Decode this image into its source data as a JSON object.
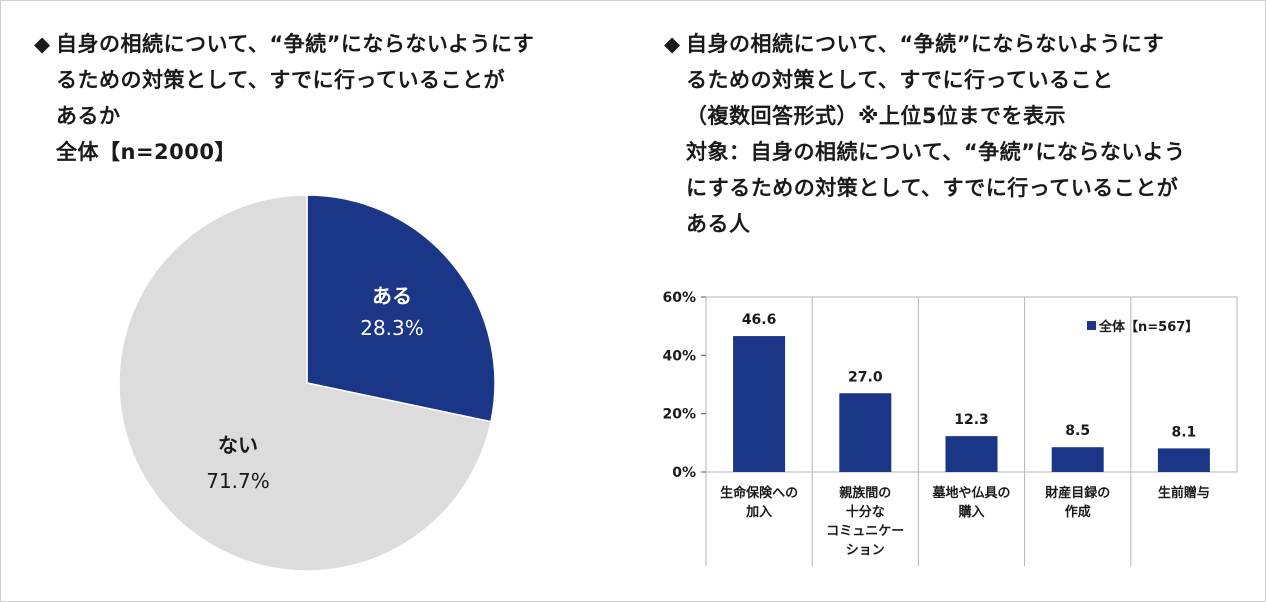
{
  "left": {
    "marker": "◆",
    "title_lines": [
      "自身の相続について、“争続”にならないようにす",
      "るための対策として、すでに行っていることが",
      "あるか"
    ],
    "base": "全体【n=2000】"
  },
  "right": {
    "marker": "◆",
    "title_lines": [
      "自身の相続について、“争続”にならないようにす",
      "るための対策として、すでに行っていること",
      "（複数回答形式）※上位5位までを表示"
    ],
    "target_lines": [
      "対象：自身の相続について、“争続”にならないよう",
      "にするための対策として、すでに行っていることが",
      "ある人"
    ]
  },
  "colors": {
    "navy": "#1b3587",
    "gray": "#dcdcdc",
    "grid": "#b5b5b5"
  },
  "chart_data": [
    {
      "type": "pie",
      "title": "",
      "slices": [
        {
          "label": "ある",
          "value": 28.3,
          "value_label": "28.3%",
          "color": "#1b3587"
        },
        {
          "label": "ない",
          "value": 71.7,
          "value_label": "71.7%",
          "color": "#dcdcdc"
        }
      ]
    },
    {
      "type": "bar",
      "title": "",
      "categories": [
        [
          "生命保険への",
          "加入"
        ],
        [
          "親族間の",
          "十分な",
          "コミュニケー",
          "ション"
        ],
        [
          "墓地や仏具の",
          "購入"
        ],
        [
          "財産目録の",
          "作成"
        ],
        [
          "生前贈与"
        ]
      ],
      "series": [
        {
          "name": "全体【n=567】",
          "values": [
            46.6,
            27.0,
            12.3,
            8.5,
            8.1
          ],
          "value_labels": [
            "46.6",
            "27.0",
            "12.3",
            "8.5",
            "8.1"
          ],
          "color": "#1b3587"
        }
      ],
      "ylim": [
        0,
        60
      ],
      "yticks": [
        0,
        20,
        40,
        60
      ],
      "ytick_labels": [
        "0%",
        "20%",
        "40%",
        "60%"
      ],
      "legend_position": "top-right",
      "grid": "vertical separators"
    }
  ]
}
